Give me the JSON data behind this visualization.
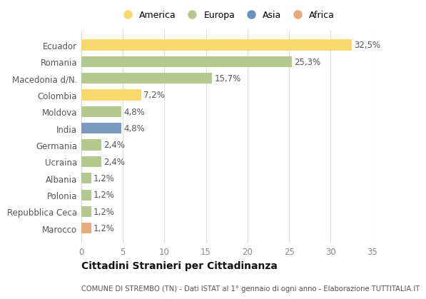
{
  "countries": [
    "Ecuador",
    "Romania",
    "Macedonia d/N.",
    "Colombia",
    "Moldova",
    "India",
    "Germania",
    "Ucraina",
    "Albania",
    "Polonia",
    "Repubblica Ceca",
    "Marocco"
  ],
  "values": [
    32.5,
    25.3,
    15.7,
    7.2,
    4.8,
    4.8,
    2.4,
    2.4,
    1.2,
    1.2,
    1.2,
    1.2
  ],
  "labels": [
    "32,5%",
    "25,3%",
    "15,7%",
    "7,2%",
    "4,8%",
    "4,8%",
    "2,4%",
    "2,4%",
    "1,2%",
    "1,2%",
    "1,2%",
    "1,2%"
  ],
  "colors": [
    "#f9d96e",
    "#b5c98e",
    "#b5c98e",
    "#f9d96e",
    "#b5c98e",
    "#7a9abf",
    "#b5c98e",
    "#b5c98e",
    "#b5c98e",
    "#b5c98e",
    "#b5c98e",
    "#e8a97e"
  ],
  "legend_labels": [
    "America",
    "Europa",
    "Asia",
    "Africa"
  ],
  "legend_colors": [
    "#f9d96e",
    "#b5c98e",
    "#6b8fbf",
    "#e8a97e"
  ],
  "title": "Cittadini Stranieri per Cittadinanza",
  "subtitle": "COMUNE DI STREMBO (TN) - Dati ISTAT al 1° gennaio di ogni anno - Elaborazione TUTTITALIA.IT",
  "xlim": [
    0,
    35
  ],
  "xticks": [
    0,
    5,
    10,
    15,
    20,
    25,
    30,
    35
  ],
  "background_color": "#ffffff",
  "grid_color": "#dddddd",
  "bar_height": 0.65,
  "label_fontsize": 8.5,
  "ytick_fontsize": 8.5,
  "xtick_fontsize": 8.5,
  "legend_fontsize": 9
}
